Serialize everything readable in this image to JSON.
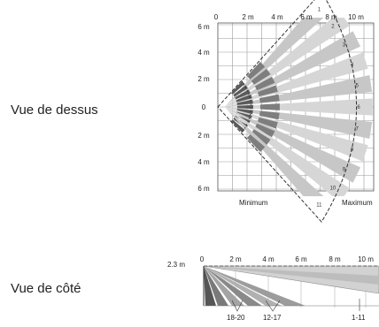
{
  "labels": {
    "top_view": "Vue de dessus",
    "side_view": "Vue de côté"
  },
  "top_view": {
    "x_ticks": [
      "0",
      "2 m",
      "4 m",
      "6 m",
      "8 m",
      "10 m"
    ],
    "y_ticks": [
      "6 m",
      "4 m",
      "2 m",
      "0",
      "2 m",
      "4 m",
      "6 m"
    ],
    "range_labels": {
      "min": "Minimum",
      "max": "Maximum"
    },
    "zone_numbers": [
      "1",
      "2",
      "3",
      "4",
      "5",
      "6",
      "7",
      "8",
      "9",
      "10",
      "11"
    ]
  },
  "side_view": {
    "height_label": "2.3 m",
    "x_ticks": [
      "0",
      "2 m",
      "4 m",
      "6 m",
      "8 m",
      "10 m"
    ],
    "beam_groups": [
      "18-20",
      "12-17",
      "1-11"
    ]
  }
}
